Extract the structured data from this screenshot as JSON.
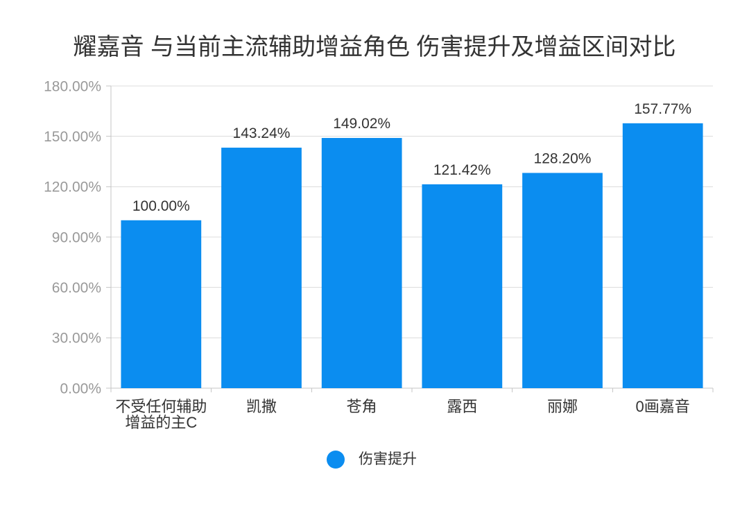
{
  "chart_data": {
    "type": "bar",
    "title": "耀嘉音 与当前主流辅助增益角色 伤害提升及增益区间对比",
    "categories": [
      "不受任何辅助增益的主C",
      "凯撒",
      "苍角",
      "露西",
      "丽娜",
      "0画嘉音"
    ],
    "series": [
      {
        "name": "伤害提升",
        "values": [
          100.0,
          143.24,
          149.02,
          121.42,
          128.2,
          157.77
        ],
        "labels": [
          "100.00%",
          "143.24%",
          "149.02%",
          "121.42%",
          "128.20%",
          "157.77%"
        ],
        "color": "#0b8df0"
      }
    ],
    "ylim": [
      0,
      180
    ],
    "yticks": [
      0,
      30,
      60,
      90,
      120,
      150,
      180
    ],
    "ytick_labels": [
      "0.00%",
      "30.00%",
      "60.00%",
      "90.00%",
      "120.00%",
      "150.00%",
      "180.00%"
    ],
    "grid": true,
    "legend": {
      "position": "bottom"
    }
  }
}
